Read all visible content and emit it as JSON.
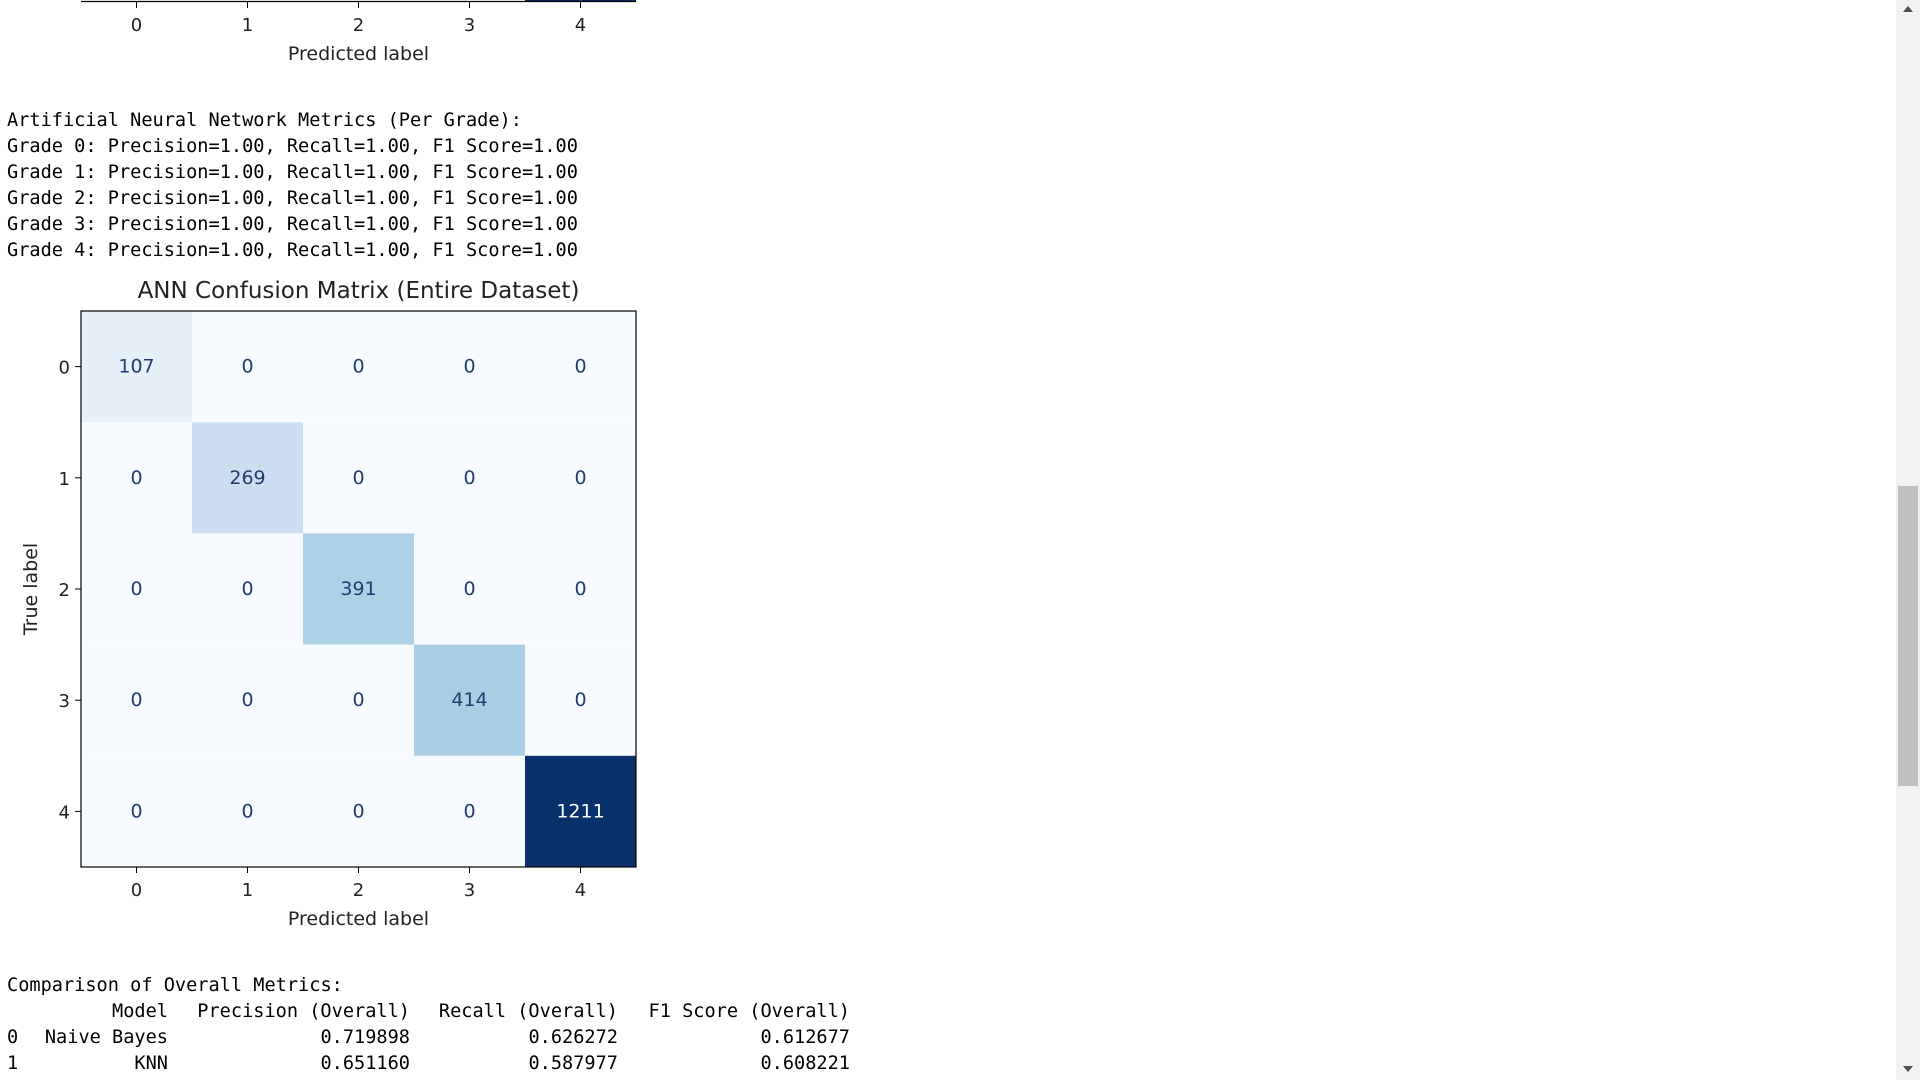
{
  "prev_plot": {
    "xticks": [
      0,
      1,
      2,
      3,
      4
    ],
    "xlabel": "Predicted label"
  },
  "metrics": {
    "title": "Artificial Neural Network Metrics (Per Grade):",
    "lines": [
      "Grade 0: Precision=1.00, Recall=1.00, F1 Score=1.00",
      "Grade 1: Precision=1.00, Recall=1.00, F1 Score=1.00",
      "Grade 2: Precision=1.00, Recall=1.00, F1 Score=1.00",
      "Grade 3: Precision=1.00, Recall=1.00, F1 Score=1.00",
      "Grade 4: Precision=1.00, Recall=1.00, F1 Score=1.00"
    ]
  },
  "matrix": {
    "title": "ANN Confusion Matrix (Entire Dataset)",
    "xlabel": "Predicted label",
    "ylabel": "True label",
    "labels": [
      0,
      1,
      2,
      3,
      4
    ],
    "values": [
      [
        107,
        0,
        0,
        0,
        0
      ],
      [
        0,
        269,
        0,
        0,
        0
      ],
      [
        0,
        0,
        391,
        0,
        0
      ],
      [
        0,
        0,
        0,
        414,
        0
      ],
      [
        0,
        0,
        0,
        0,
        1211
      ]
    ]
  },
  "comparison": {
    "title": "Comparison of Overall Metrics:",
    "columns": [
      "Model",
      "Precision (Overall)",
      "Recall (Overall)",
      "F1 Score (Overall)"
    ],
    "rows": [
      [
        "0",
        "Naive Bayes",
        "0.719898",
        "0.626272",
        "0.612677"
      ],
      [
        "1",
        "KNN",
        "0.651160",
        "0.587977",
        "0.608221"
      ]
    ]
  }
}
